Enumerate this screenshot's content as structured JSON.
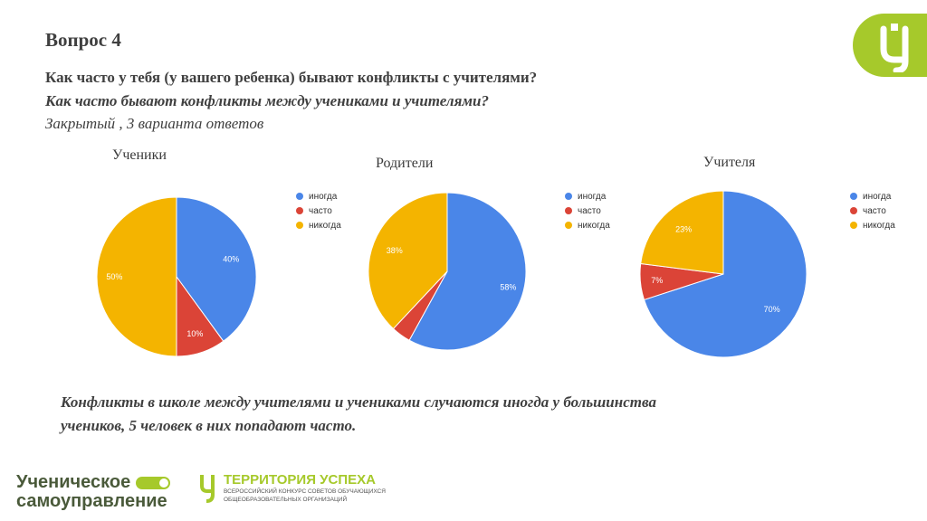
{
  "header": {
    "title": "Вопрос 4",
    "question": "Как часто у тебя (у вашего ребенка) бывают конфликты с учителями?",
    "question_alt": "Как часто бывают конфликты между учениками и учителями?",
    "question_type": "Закрытый , 3 варианта ответов"
  },
  "colors": {
    "blue": "#4a86e8",
    "red": "#db4437",
    "yellow": "#f4b400",
    "brand_green": "#a6c92b"
  },
  "chart_data": [
    {
      "type": "pie",
      "title": "Ученики",
      "categories": [
        "иногда",
        "часто",
        "никогда"
      ],
      "values": [
        40,
        10,
        50
      ],
      "labels": [
        "40%",
        "10%",
        "50%"
      ],
      "legend_position": "right"
    },
    {
      "type": "pie",
      "title": "Родители",
      "categories": [
        "иногда",
        "часто",
        "никогда"
      ],
      "values": [
        58,
        4,
        38
      ],
      "labels": [
        "58%",
        "",
        "38%"
      ],
      "legend_position": "right"
    },
    {
      "type": "pie",
      "title": "Учителя",
      "categories": [
        "иногда",
        "часто",
        "никогда"
      ],
      "values": [
        70,
        7,
        23
      ],
      "labels": [
        "70%",
        "7%",
        "23%"
      ],
      "legend_position": "right"
    }
  ],
  "conclusion": {
    "line1": "Конфликты в школе между учителями и учениками случаются иногда у большинства",
    "line2": "учеников, 5 человек в них попадают часто."
  },
  "footer": {
    "left_line1": "Ученическое",
    "left_line2": "самоуправление",
    "right_title": "ТЕРРИТОРИЯ УСПЕХА",
    "right_sub1": "ВСЕРОССИЙСКИЙ КОНКУРС СОВЕТОВ ОБУЧАЮЩИХСЯ",
    "right_sub2": "ОБЩЕОБРАЗОВАТЕЛЬНЫХ ОРГАНИЗАЦИЙ"
  }
}
